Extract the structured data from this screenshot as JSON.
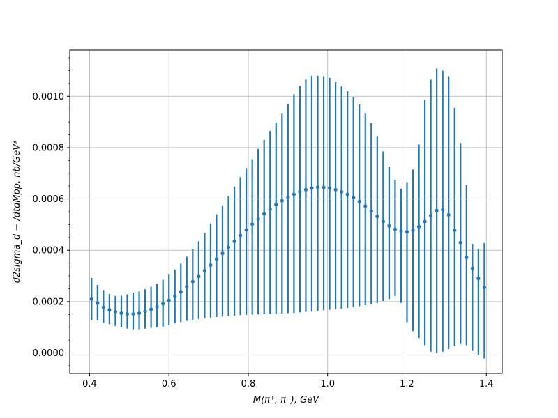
{
  "chart_data": {
    "type": "scatter",
    "title": "",
    "xlabel": "M(π⁺, π⁻), GeV",
    "ylabel": "d2sigma_d − /dtdMpp, nb/GeV³",
    "xlim": [
      0.35,
      1.44
    ],
    "ylim": [
      -8e-05,
      0.00118
    ],
    "xticks": [
      0.4,
      0.6,
      0.8,
      1.0,
      1.2,
      1.4
    ],
    "xtick_labels": [
      "0.4",
      "0.6",
      "0.8",
      "1.0",
      "1.2",
      "1.4"
    ],
    "yticks": [
      0.0,
      0.0002,
      0.0004,
      0.0006,
      0.0008,
      0.001
    ],
    "ytick_labels": [
      "0.0000",
      "0.0002",
      "0.0004",
      "0.0006",
      "0.0008",
      "0.0010"
    ],
    "grid": true,
    "legend": "none",
    "color": "#1f77b4",
    "series": [
      {
        "x": [
          0.405,
          0.42,
          0.435,
          0.45,
          0.465,
          0.48,
          0.495,
          0.51,
          0.525,
          0.54,
          0.555,
          0.57,
          0.585,
          0.6,
          0.615,
          0.63,
          0.645,
          0.66,
          0.675,
          0.69,
          0.705,
          0.72,
          0.735,
          0.75,
          0.765,
          0.78,
          0.795,
          0.81,
          0.825,
          0.84,
          0.855,
          0.87,
          0.885,
          0.9,
          0.915,
          0.93,
          0.945,
          0.96,
          0.975,
          0.99,
          1.005,
          1.02,
          1.035,
          1.05,
          1.065,
          1.08,
          1.095,
          1.11,
          1.125,
          1.14,
          1.155,
          1.17,
          1.185,
          1.2,
          1.215,
          1.23,
          1.245,
          1.26,
          1.275,
          1.29,
          1.305,
          1.32,
          1.335,
          1.35,
          1.365,
          1.38,
          1.395
        ],
        "y": [
          0.00021,
          0.000195,
          0.000178,
          0.000168,
          0.00016,
          0.000155,
          0.000152,
          0.000152,
          0.000155,
          0.000162,
          0.00017,
          0.00018,
          0.000192,
          0.000205,
          0.00022,
          0.000238,
          0.000258,
          0.000278,
          0.000298,
          0.00032,
          0.000342,
          0.000365,
          0.000388,
          0.000412,
          0.000435,
          0.000458,
          0.00048,
          0.000502,
          0.000522,
          0.000542,
          0.00056,
          0.000578,
          0.000593,
          0.000606,
          0.000618,
          0.000628,
          0.000636,
          0.000642,
          0.000645,
          0.000645,
          0.000642,
          0.000636,
          0.000628,
          0.000618,
          0.000605,
          0.00059,
          0.000572,
          0.000552,
          0.000532,
          0.000512,
          0.000495,
          0.000482,
          0.000475,
          0.000472,
          0.000478,
          0.000492,
          0.000512,
          0.000535,
          0.000555,
          0.000558,
          0.000538,
          0.000478,
          0.00043,
          0.000372,
          0.00033,
          0.00029,
          0.000255
        ],
        "err_low": [
          0.000128,
          0.000126,
          0.000118,
          0.000112,
          0.000105,
          0.0001,
          9.5e-05,
          9.2e-05,
          9.2e-05,
          9.5e-05,
          9.8e-05,
          0.0001,
          0.000103,
          0.000108,
          0.000115,
          0.00012,
          0.000125,
          0.000128,
          0.000132,
          0.000135,
          0.000138,
          0.00014,
          0.000142,
          0.000144,
          0.000145,
          0.000147,
          0.000148,
          0.000149,
          0.00015,
          0.000151,
          0.000152,
          0.000153,
          0.000154,
          0.000155,
          0.000156,
          0.000158,
          0.00016,
          0.000162,
          0.000164,
          0.000166,
          0.000168,
          0.00017,
          0.000172,
          0.000175,
          0.000178,
          0.000182,
          0.000186,
          0.00019,
          0.000195,
          0.000202,
          0.00021,
          0.000222,
          0.000195,
          0.00012,
          8.5e-05,
          5.8e-05,
          3e-05,
          5e-06,
          0.0,
          5e-06,
          1.5e-05,
          2.8e-05,
          3.5e-05,
          3e-05,
          8e-06,
          -8e-06,
          -2.2e-05
        ],
        "err_high": [
          0.000292,
          0.000265,
          0.000245,
          0.00023,
          0.000222,
          0.000223,
          0.000228,
          0.000235,
          0.00024,
          0.000248,
          0.000258,
          0.00027,
          0.000285,
          0.000305,
          0.000325,
          0.000348,
          0.000375,
          0.000405,
          0.000435,
          0.000468,
          0.000505,
          0.00054,
          0.000575,
          0.00061,
          0.000648,
          0.000685,
          0.00072,
          0.000755,
          0.000795,
          0.00083,
          0.000865,
          0.000898,
          0.000935,
          0.00097,
          0.001008,
          0.00104,
          0.001065,
          0.00108,
          0.00108,
          0.001078,
          0.001072,
          0.001055,
          0.001038,
          0.00102,
          0.000998,
          0.000968,
          0.000935,
          0.000895,
          0.000845,
          0.000785,
          0.000725,
          0.000675,
          0.00064,
          0.000665,
          0.000715,
          0.000812,
          0.000985,
          0.001065,
          0.001108,
          0.0011,
          0.001078,
          0.000955,
          0.000818,
          0.000655,
          0.000425,
          0.000405,
          0.000428
        ]
      }
    ]
  }
}
